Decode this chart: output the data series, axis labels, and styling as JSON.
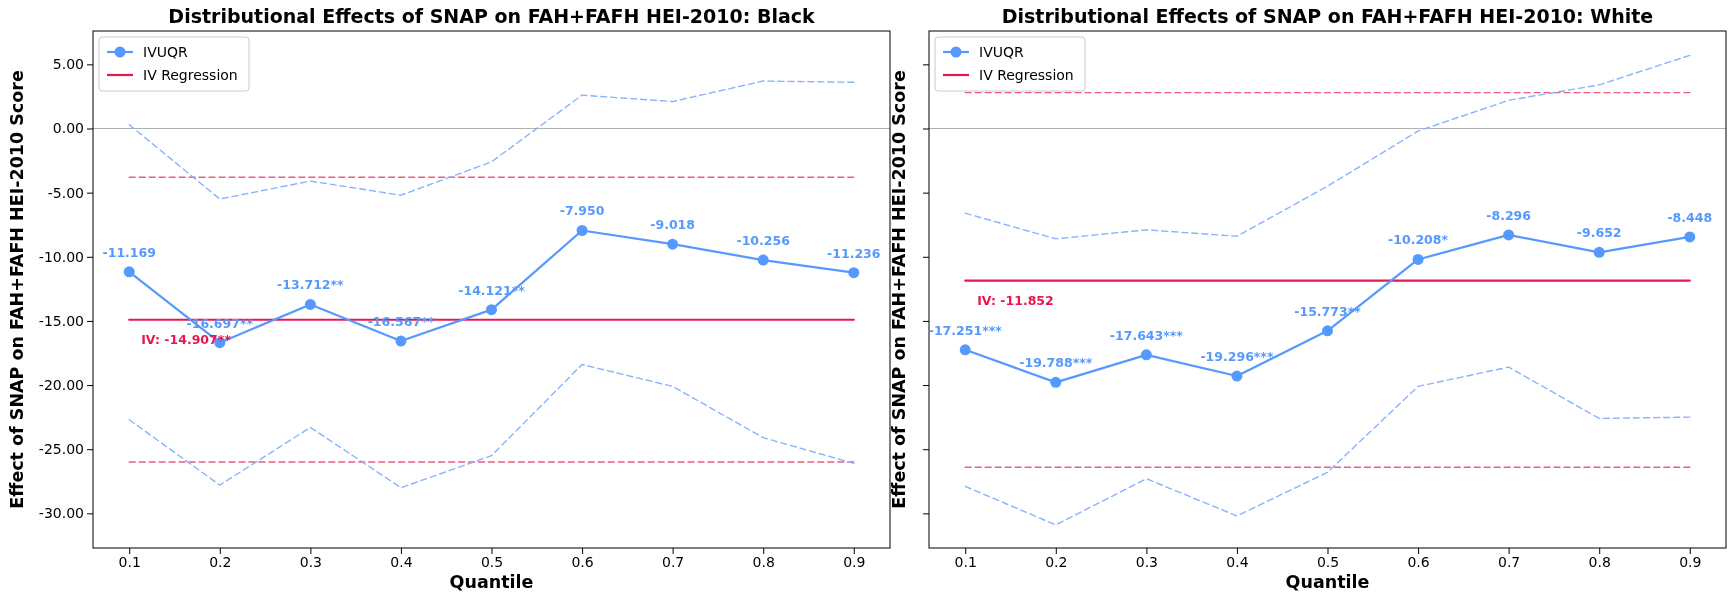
{
  "chart_data": [
    {
      "type": "line",
      "title": "Distributional Effects of SNAP on FAH+FAFH HEI-2010: Black",
      "xlabel": "Quantile",
      "ylabel": "Effect of SNAP on FAH+FAFH HEI-2010 Score",
      "x": [
        0.1,
        0.2,
        0.3,
        0.4,
        0.5,
        0.6,
        0.7,
        0.8,
        0.9
      ],
      "xlim": [
        0.06,
        0.94
      ],
      "xticks": [
        0.1,
        0.2,
        0.3,
        0.4,
        0.5,
        0.6,
        0.7,
        0.8,
        0.9
      ],
      "ylim": [
        -32.7,
        7.6
      ],
      "yticks": [
        {
          "value": 5,
          "label": "5.00"
        },
        {
          "value": 0,
          "label": "0.00"
        },
        {
          "value": -5,
          "label": "-5.00"
        },
        {
          "value": -10,
          "label": "-10.00"
        },
        {
          "value": -15,
          "label": "-15.00"
        },
        {
          "value": -20,
          "label": "-20.00"
        },
        {
          "value": -25,
          "label": "-25.00"
        },
        {
          "value": -30,
          "label": "-30.00"
        }
      ],
      "legend": "top left",
      "ref_lines": [
        {
          "axis": "y",
          "value": 0,
          "color": "#b0b0b0"
        }
      ],
      "series": [
        {
          "name": "IVUQR",
          "color": "#5599ff",
          "marker": "circle",
          "line_style": "solid",
          "values": [
            -11.169,
            -16.697,
            -13.712,
            -16.567,
            -14.121,
            -7.95,
            -9.018,
            -10.256,
            -11.236
          ],
          "value_labels": [
            "-11.169",
            "-16.697**",
            "-13.712**",
            "-16.567**",
            "-14.121**",
            "-7.950",
            "-9.018",
            "-10.256",
            "-11.236"
          ]
        },
        {
          "color": "#88b3ff",
          "marker": "none",
          "line_style": "dashed",
          "values": [
            0.3,
            -5.5,
            -4.1,
            -5.2,
            -2.6,
            2.6,
            2.1,
            3.7,
            3.6
          ]
        },
        {
          "color": "#88b3ff",
          "marker": "none",
          "line_style": "dashed",
          "values": [
            -22.7,
            -27.8,
            -23.3,
            -28.0,
            -25.5,
            -18.4,
            -20.1,
            -24.1,
            -26.1
          ]
        },
        {
          "name": "IV Regression",
          "color": "#e8174f",
          "marker": "none",
          "line_style": "solid",
          "values": [
            -14.907,
            -14.907,
            -14.907,
            -14.907,
            -14.907,
            -14.907,
            -14.907,
            -14.907,
            -14.907
          ],
          "value_labels": [
            "IV: -14.907**",
            null,
            null,
            null,
            null,
            null,
            null,
            null,
            null
          ]
        },
        {
          "color": "#ee5c80",
          "marker": "none",
          "line_style": "dashed",
          "values": [
            -3.8,
            -3.8,
            -3.8,
            -3.8,
            -3.8,
            -3.8,
            -3.8,
            -3.8,
            -3.8
          ]
        },
        {
          "color": "#ee5c80",
          "marker": "none",
          "line_style": "dashed",
          "values": [
            -26.0,
            -26.0,
            -26.0,
            -26.0,
            -26.0,
            -26.0,
            -26.0,
            -26.0,
            -26.0
          ]
        }
      ]
    },
    {
      "type": "line",
      "title": "Distributional Effects of SNAP on FAH+FAFH HEI-2010: White",
      "xlabel": "Quantile",
      "ylabel": "Effect of SNAP on FAH+FAFH HEI-2010 Score",
      "x": [
        0.1,
        0.2,
        0.3,
        0.4,
        0.5,
        0.6,
        0.7,
        0.8,
        0.9
      ],
      "xlim": [
        0.06,
        0.94
      ],
      "xticks": [
        0.1,
        0.2,
        0.3,
        0.4,
        0.5,
        0.6,
        0.7,
        0.8,
        0.9
      ],
      "ylim": [
        -32.7,
        7.6
      ],
      "yticks": [
        {
          "value": 5,
          "label": null
        },
        {
          "value": 0,
          "label": null
        },
        {
          "value": -5,
          "label": null
        },
        {
          "value": -10,
          "label": null
        },
        {
          "value": -15,
          "label": null
        },
        {
          "value": -20,
          "label": null
        },
        {
          "value": -25,
          "label": null
        },
        {
          "value": -30,
          "label": null
        }
      ],
      "tick_labels": "x",
      "legend": "top left",
      "ref_lines": [
        {
          "axis": "y",
          "value": 0,
          "color": "#b0b0b0"
        }
      ],
      "series": [
        {
          "name": "IVUQR",
          "color": "#5599ff",
          "marker": "circle",
          "line_style": "solid",
          "values": [
            -17.251,
            -19.788,
            -17.643,
            -19.296,
            -15.773,
            -10.208,
            -8.296,
            -9.652,
            -8.448
          ],
          "value_labels": [
            "-17.251***",
            "-19.788***",
            "-17.643***",
            "-19.296***",
            "-15.773**",
            "-10.208*",
            "-8.296",
            "-9.652",
            "-8.448"
          ]
        },
        {
          "color": "#88b3ff",
          "marker": "none",
          "line_style": "dashed",
          "values": [
            -6.6,
            -8.6,
            -7.9,
            -8.4,
            -4.5,
            -0.2,
            2.2,
            3.4,
            5.7
          ]
        },
        {
          "color": "#88b3ff",
          "marker": "none",
          "line_style": "dashed",
          "values": [
            -27.9,
            -30.9,
            -27.3,
            -30.2,
            -26.8,
            -20.1,
            -18.6,
            -22.6,
            -22.5
          ]
        },
        {
          "name": "IV Regression",
          "color": "#e8174f",
          "marker": "none",
          "line_style": "solid",
          "values": [
            -11.852,
            -11.852,
            -11.852,
            -11.852,
            -11.852,
            -11.852,
            -11.852,
            -11.852,
            -11.852
          ],
          "value_labels": [
            "IV: -11.852",
            null,
            null,
            null,
            null,
            null,
            null,
            null,
            null
          ]
        },
        {
          "color": "#ee5c80",
          "marker": "none",
          "line_style": "dashed",
          "values": [
            2.8,
            2.8,
            2.8,
            2.8,
            2.8,
            2.8,
            2.8,
            2.8,
            2.8
          ]
        },
        {
          "color": "#ee5c80",
          "marker": "none",
          "line_style": "dashed",
          "values": [
            -26.4,
            -26.4,
            -26.4,
            -26.4,
            -26.4,
            -26.4,
            -26.4,
            -26.4,
            -26.4
          ]
        }
      ]
    }
  ]
}
